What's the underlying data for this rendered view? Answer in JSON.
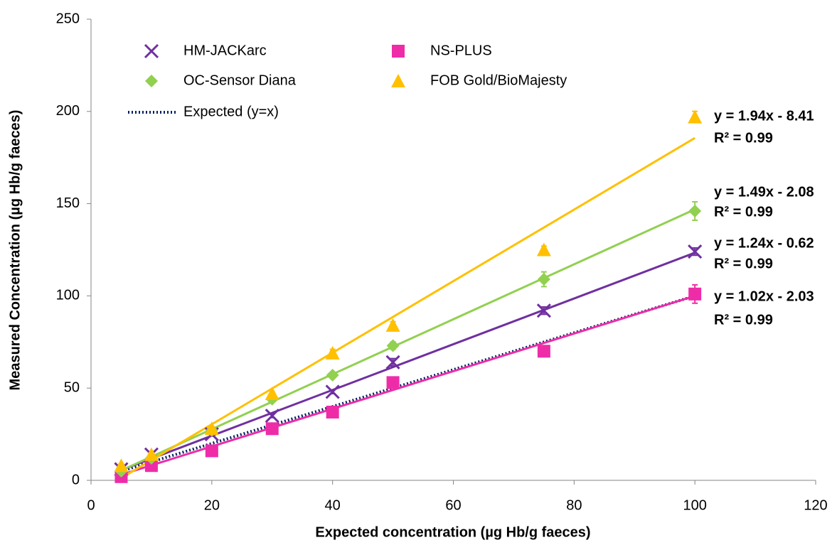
{
  "chart_data": {
    "type": "scatter",
    "x_label": "Expected concentration (µg Hb/g faeces)",
    "y_label": "Measured Concentration (µg Hb/g faeces)",
    "x": [
      5,
      10,
      20,
      30,
      40,
      50,
      75,
      100
    ],
    "xlim": [
      0,
      120
    ],
    "xticks": [
      0,
      20,
      40,
      60,
      80,
      100,
      120
    ],
    "ylim": [
      0,
      250
    ],
    "yticks": [
      0,
      50,
      100,
      150,
      200,
      250
    ],
    "series": [
      {
        "name": "HM-JACKarc",
        "color": "#7030a0",
        "marker": "x",
        "values": [
          6,
          14,
          25,
          35,
          48,
          64,
          92,
          124
        ],
        "errors": [
          1,
          1,
          1,
          1,
          1,
          2,
          2,
          2
        ],
        "trendline": {
          "slope": 1.24,
          "intercept": -0.62,
          "equation": "y = 1.24x - 0.62",
          "r2": "R² = 0.99"
        }
      },
      {
        "name": "NS-PLUS",
        "color": "#ee2ca8",
        "marker": "square",
        "values": [
          2,
          8,
          16,
          28,
          37,
          53,
          70,
          101
        ],
        "errors": [
          1,
          1,
          1,
          1,
          1,
          2,
          2,
          5
        ],
        "trendline": {
          "slope": 1.02,
          "intercept": -2.03,
          "equation": "y = 1.02x - 2.03",
          "r2": "R² = 0.99"
        }
      },
      {
        "name": "OC-Sensor Diana",
        "color": "#92d050",
        "marker": "diamond",
        "values": [
          5,
          12,
          27,
          44,
          57,
          73,
          109,
          146
        ],
        "errors": [
          1,
          1,
          1,
          1,
          1,
          2,
          4,
          5
        ],
        "trendline": {
          "slope": 1.49,
          "intercept": -2.08,
          "equation": "y = 1.49x - 2.08",
          "r2": "R² = 0.99"
        }
      },
      {
        "name": "FOB Gold/BioMajesty",
        "color": "#ffc000",
        "marker": "triangle",
        "values": [
          8,
          14,
          28,
          47,
          69,
          84,
          125,
          197
        ],
        "errors": [
          1,
          1,
          1,
          1,
          2,
          2,
          2,
          3
        ],
        "trendline": {
          "slope": 1.94,
          "intercept": -8.41,
          "equation": "y = 1.94x - 8.41",
          "r2": "R² = 0.99"
        }
      }
    ],
    "reference_line": {
      "name": "Expected (y=x)",
      "color": "#002060",
      "slope": 1,
      "intercept": 0
    }
  }
}
